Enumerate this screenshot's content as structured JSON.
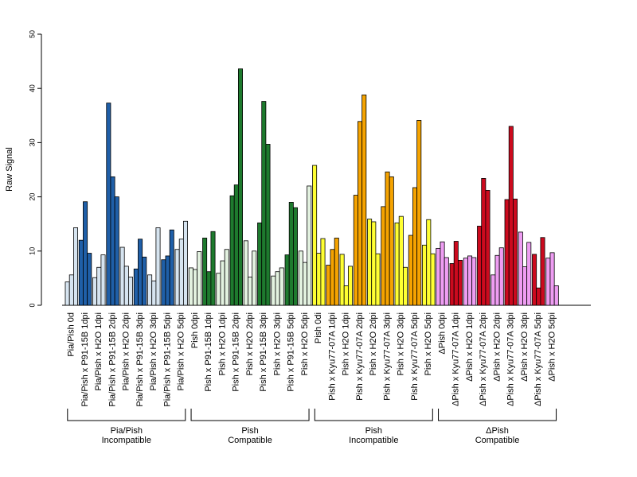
{
  "chart_data": {
    "type": "bar",
    "ylabel": "Raw Signal",
    "ylim": [
      0,
      50
    ],
    "yticks": [
      0,
      10,
      20,
      30,
      40,
      50
    ],
    "grid": false,
    "categories": [
      {
        "label": "Pia/Pish 0d",
        "values": [
          4.3,
          5.6,
          14.3
        ],
        "colors": [
          "#d6e4f0",
          "#d6e4f0",
          "#d6e4f0"
        ]
      },
      {
        "label": "Pia/Pish x P91-15B 1dpi",
        "values": [
          12.0,
          19.1,
          9.6
        ],
        "colors": [
          "#1f5fa8",
          "#1f5fa8",
          "#1f5fa8"
        ]
      },
      {
        "label": "Pia/Pish x H2O 1dpi",
        "values": [
          5.1,
          7.0,
          9.3
        ],
        "colors": [
          "#d6e4f0",
          "#d6e4f0",
          "#d6e4f0"
        ]
      },
      {
        "label": "Pia/Pish x P91-15B 2dpi",
        "values": [
          37.3,
          23.7,
          20.0
        ],
        "colors": [
          "#1f5fa8",
          "#1f5fa8",
          "#1f5fa8"
        ]
      },
      {
        "label": "Pia/Pish x H2O 2dpi",
        "values": [
          10.7,
          7.2,
          5.2
        ],
        "colors": [
          "#d6e4f0",
          "#d6e4f0",
          "#d6e4f0"
        ]
      },
      {
        "label": "Pia/Pish x P91-15B 3dpi",
        "values": [
          6.7,
          12.2,
          8.9
        ],
        "colors": [
          "#1f5fa8",
          "#1f5fa8",
          "#1f5fa8"
        ]
      },
      {
        "label": "Pia/Pish x H2O 3dpi",
        "values": [
          5.6,
          4.5,
          14.3
        ],
        "colors": [
          "#d6e4f0",
          "#d6e4f0",
          "#d6e4f0"
        ]
      },
      {
        "label": "Pia/Pish x P91-15B 5dpi",
        "values": [
          8.4,
          9.1,
          13.9
        ],
        "colors": [
          "#1f5fa8",
          "#1f5fa8",
          "#1f5fa8"
        ]
      },
      {
        "label": "Pia/Pish x H2O 5dpi",
        "values": [
          10.3,
          12.2,
          15.5
        ],
        "colors": [
          "#d6e4f0",
          "#d6e4f0",
          "#d6e4f0"
        ]
      },
      {
        "label": "Pish 0dpi",
        "values": [
          6.9,
          6.6,
          9.9
        ],
        "colors": [
          "#e3f2e0",
          "#e3f2e0",
          "#e3f2e0"
        ]
      },
      {
        "label": "Pish x P91-15B 1dpi",
        "values": [
          12.4,
          6.2,
          13.6
        ],
        "colors": [
          "#1e7a2e",
          "#1e7a2e",
          "#1e7a2e"
        ]
      },
      {
        "label": "Pish x H2O 1dpi",
        "values": [
          5.9,
          8.2,
          10.3
        ],
        "colors": [
          "#e3f2e0",
          "#e3f2e0",
          "#e3f2e0"
        ]
      },
      {
        "label": "Pish x P91-15B 2dpi",
        "values": [
          20.2,
          22.2,
          43.6
        ],
        "colors": [
          "#1e7a2e",
          "#1e7a2e",
          "#1e7a2e"
        ]
      },
      {
        "label": "Pish x H2O 2dpi",
        "values": [
          11.9,
          5.2,
          10.0
        ],
        "colors": [
          "#e3f2e0",
          "#e3f2e0",
          "#e3f2e0"
        ]
      },
      {
        "label": "Pish x P91-15B 3dpi",
        "values": [
          15.2,
          37.6,
          29.7
        ],
        "colors": [
          "#1e7a2e",
          "#1e7a2e",
          "#1e7a2e"
        ]
      },
      {
        "label": "Pish x H2O 3dpi",
        "values": [
          5.4,
          6.2,
          6.9
        ],
        "colors": [
          "#e3f2e0",
          "#e3f2e0",
          "#e3f2e0"
        ]
      },
      {
        "label": "Pish x P91-15B 5dpi",
        "values": [
          9.3,
          19.0,
          18.0
        ],
        "colors": [
          "#1e7a2e",
          "#1e7a2e",
          "#1e7a2e"
        ]
      },
      {
        "label": "Pish x H2O 5dpi",
        "values": [
          10.0,
          7.9,
          22.0
        ],
        "colors": [
          "#e3f2e0",
          "#e3f2e0",
          "#e3f2e0"
        ]
      },
      {
        "label": "Pish 0di",
        "values": [
          25.8,
          9.6,
          12.3
        ],
        "colors": [
          "#ffff33",
          "#ffff33",
          "#ffff33"
        ]
      },
      {
        "label": "Pish x Kyu77-07A 1dpi",
        "values": [
          7.4,
          10.3,
          12.4
        ],
        "colors": [
          "#f5a300",
          "#f5a300",
          "#f5a300"
        ]
      },
      {
        "label": "Pish x H2O 1dpi",
        "values": [
          9.4,
          3.6,
          7.2
        ],
        "colors": [
          "#ffff33",
          "#ffff33",
          "#ffff33"
        ]
      },
      {
        "label": "Pish x Kyu77-07A 2dpi",
        "values": [
          20.3,
          33.9,
          38.8
        ],
        "colors": [
          "#f5a300",
          "#f5a300",
          "#f5a300"
        ]
      },
      {
        "label": "Pish x H2O 2dpi",
        "values": [
          15.9,
          15.4,
          9.5
        ],
        "colors": [
          "#ffff33",
          "#ffff33",
          "#ffff33"
        ]
      },
      {
        "label": "Pish x Kyu77-07A 3dpi",
        "values": [
          18.2,
          24.6,
          23.7
        ],
        "colors": [
          "#f5a300",
          "#f5a300",
          "#f5a300"
        ]
      },
      {
        "label": "Pish x H2O 3dpi",
        "values": [
          15.2,
          16.4,
          7.0
        ],
        "colors": [
          "#ffff33",
          "#ffff33",
          "#ffff33"
        ]
      },
      {
        "label": "Pish x Kyu77-07A 5dpi",
        "values": [
          12.9,
          21.7,
          34.1
        ],
        "colors": [
          "#f5a300",
          "#f5a300",
          "#f5a300"
        ]
      },
      {
        "label": "Pish x H2O 5dpi",
        "values": [
          11.1,
          15.8,
          9.5
        ],
        "colors": [
          "#ffff33",
          "#ffff33",
          "#ffff33"
        ]
      },
      {
        "label": "ΔPish 0dpi",
        "values": [
          10.5,
          11.7,
          8.8
        ],
        "colors": [
          "#ee9df2",
          "#ee9df2",
          "#ee9df2"
        ]
      },
      {
        "label": "ΔPish x Kyu77-07A 1dpi",
        "values": [
          7.7,
          11.8,
          8.3
        ],
        "colors": [
          "#cc0a1e",
          "#cc0a1e",
          "#cc0a1e"
        ]
      },
      {
        "label": "ΔPish x H2O 1dpi",
        "values": [
          8.7,
          9.1,
          8.8
        ],
        "colors": [
          "#ee9df2",
          "#ee9df2",
          "#ee9df2"
        ]
      },
      {
        "label": "ΔPish x Kyu77-07A 2dpi",
        "values": [
          14.6,
          23.4,
          21.2
        ],
        "colors": [
          "#cc0a1e",
          "#cc0a1e",
          "#cc0a1e"
        ]
      },
      {
        "label": "ΔPish x H2O 2dpi",
        "values": [
          5.6,
          9.2,
          10.6
        ],
        "colors": [
          "#ee9df2",
          "#ee9df2",
          "#ee9df2"
        ]
      },
      {
        "label": "ΔPish x Kyu77-07A 3dpi",
        "values": [
          19.5,
          33.0,
          19.6
        ],
        "colors": [
          "#cc0a1e",
          "#cc0a1e",
          "#cc0a1e"
        ]
      },
      {
        "label": "ΔPish x H2O 3dpi",
        "values": [
          13.5,
          7.1,
          11.6
        ],
        "colors": [
          "#ee9df2",
          "#ee9df2",
          "#ee9df2"
        ]
      },
      {
        "label": "ΔPish x Kyu77-07A 5dpi",
        "values": [
          9.4,
          3.2,
          12.5
        ],
        "colors": [
          "#cc0a1e",
          "#cc0a1e",
          "#cc0a1e"
        ]
      },
      {
        "label": "ΔPish x H2O 5dpi",
        "values": [
          8.7,
          9.7,
          3.6
        ],
        "colors": [
          "#ee9df2",
          "#ee9df2",
          "#ee9df2"
        ]
      }
    ],
    "groups": [
      {
        "label_lines": [
          "Pia/Pish",
          "Incompatible"
        ],
        "first": 0,
        "last": 8
      },
      {
        "label_lines": [
          "Pish",
          "Compatible"
        ],
        "first": 9,
        "last": 17
      },
      {
        "label_lines": [
          "Pish",
          "Incompatible"
        ],
        "first": 18,
        "last": 26
      },
      {
        "label_lines": [
          "ΔPish",
          "Compatible"
        ],
        "first": 27,
        "last": 35
      }
    ]
  }
}
